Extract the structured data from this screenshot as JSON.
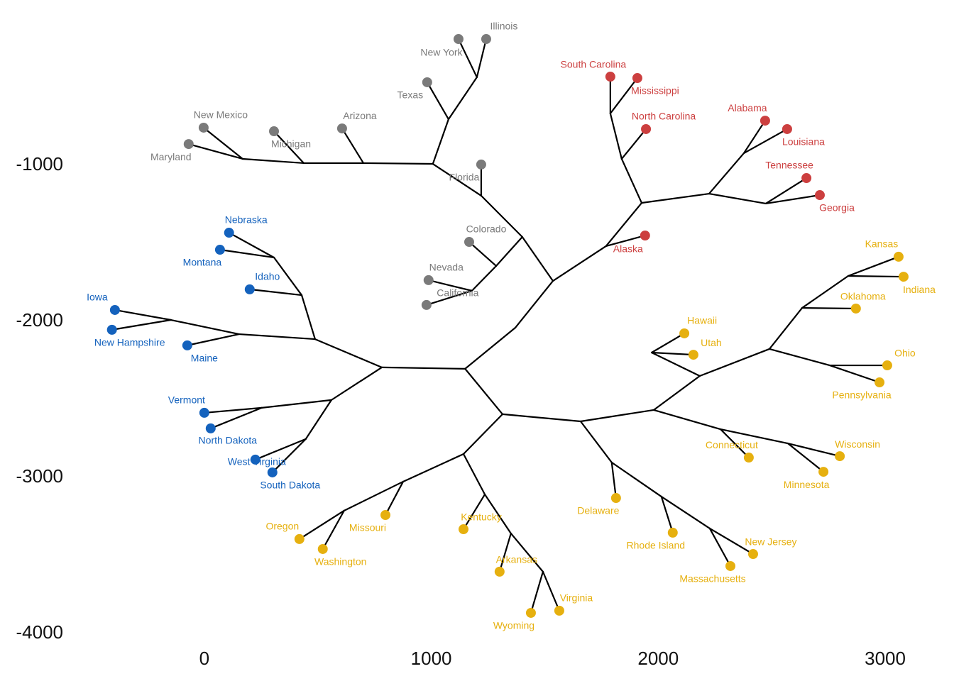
{
  "chart_data": {
    "type": "tree",
    "xlim": [
      -600,
      3250
    ],
    "ylim": [
      -4100,
      0
    ],
    "xticks": [
      0,
      1000,
      2000,
      3000
    ],
    "yticks": [
      -1000,
      -2000,
      -3000,
      -4000
    ],
    "edge_color": "#000000",
    "series": [
      {
        "color": "#7a7a7a",
        "labels": [
          "Illinois",
          "New York",
          "Texas",
          "New Mexico",
          "Maryland",
          "Michigan",
          "Arizona",
          "Florida",
          "Colorado",
          "Nevada",
          "California"
        ],
        "x": [
          1242,
          1120,
          982,
          -3,
          -69,
          307,
          607,
          1220,
          1167,
          988,
          979
        ],
        "y": [
          -191,
          -191,
          -468,
          -759,
          -864,
          -782,
          -764,
          -995,
          -1491,
          -1736,
          -1895
        ]
      },
      {
        "color": "#cc3f3f",
        "labels": [
          "South Carolina",
          "Mississippi",
          "North Carolina",
          "Alabama",
          "Louisiana",
          "Tennessee",
          "Georgia",
          "Alaska"
        ],
        "x": [
          1789,
          1908,
          1946,
          2471,
          2568,
          2653,
          2712,
          1942
        ],
        "y": [
          -432,
          -441,
          -768,
          -714,
          -768,
          -1082,
          -1191,
          -1450
        ]
      },
      {
        "color": "#1462bd",
        "labels": [
          "Nebraska",
          "Montana",
          "Idaho",
          "Iowa",
          "New Hampshire",
          "Maine",
          "Vermont",
          "North Dakota",
          "West Virginia",
          "South Dakota"
        ],
        "x": [
          109,
          69,
          200,
          -394,
          -407,
          -75,
          0,
          28,
          225,
          300
        ],
        "y": [
          -1432,
          -1541,
          -1795,
          -1927,
          -2054,
          -2154,
          -2586,
          -2686,
          -2886,
          -2968
        ]
      },
      {
        "color": "#e6b00f",
        "labels": [
          "Kansas",
          "Indiana",
          "Oklahoma",
          "Hawaii",
          "Utah",
          "Ohio",
          "Pennsylvania",
          "Connecticut",
          "Wisconsin",
          "Minnesota",
          "Delaware",
          "Missouri",
          "Kentucky",
          "Oregon",
          "Washington",
          "Rhode Island",
          "New Jersey",
          "Massachusetts",
          "Arkansas",
          "Virginia",
          "Wyoming"
        ],
        "x": [
          3059,
          3081,
          2871,
          2115,
          2155,
          3009,
          2975,
          2399,
          2800,
          2728,
          1814,
          798,
          1142,
          419,
          522,
          2064,
          2418,
          2318,
          1301,
          1564,
          1439
        ],
        "y": [
          -1586,
          -1714,
          -1918,
          -2077,
          -2214,
          -2282,
          -2391,
          -2873,
          -2864,
          -2964,
          -3132,
          -3241,
          -3332,
          -3395,
          -3459,
          -3354,
          -3491,
          -3568,
          -3604,
          -3854,
          -3868
        ]
      }
    ],
    "edges": [
      {
        "x": [
          782,
          1149
        ],
        "y": [
          -2295,
          -2304
        ]
      },
      {
        "x": [
          782,
          488
        ],
        "y": [
          -2295,
          -2114
        ]
      },
      {
        "x": [
          782,
          560
        ],
        "y": [
          -2295,
          -2504
        ]
      },
      {
        "x": [
          1149,
          1370
        ],
        "y": [
          -2304,
          -2041
        ]
      },
      {
        "x": [
          1370,
          1536
        ],
        "y": [
          -2041,
          -1741
        ]
      },
      {
        "x": [
          1149,
          1314
        ],
        "y": [
          -2304,
          -2595
        ]
      },
      {
        "x": [
          1314,
          1142
        ],
        "y": [
          -2595,
          -2850
        ]
      },
      {
        "x": [
          1314,
          1658
        ],
        "y": [
          -2595,
          -2641
        ]
      },
      {
        "x": [
          1536,
          1401
        ],
        "y": [
          -1741,
          -1459
        ]
      },
      {
        "x": [
          1536,
          1770
        ],
        "y": [
          -1741,
          -1518
        ]
      },
      {
        "x": [
          1401,
          1220
        ],
        "y": [
          -1459,
          -1195
        ]
      },
      {
        "x": [
          1220,
          1220
        ],
        "y": [
          -1195,
          -995
        ]
      },
      {
        "x": [
          1220,
          1007
        ],
        "y": [
          -1195,
          -991
        ]
      },
      {
        "x": [
          1401,
          1286
        ],
        "y": [
          -1459,
          -1645
        ]
      },
      {
        "x": [
          1286,
          1167
        ],
        "y": [
          -1645,
          -1491
        ]
      },
      {
        "x": [
          1286,
          1179
        ],
        "y": [
          -1645,
          -1804
        ]
      },
      {
        "x": [
          1179,
          988
        ],
        "y": [
          -1804,
          -1736
        ]
      },
      {
        "x": [
          1179,
          979
        ],
        "y": [
          -1804,
          -1895
        ]
      },
      {
        "x": [
          1007,
          1076
        ],
        "y": [
          -991,
          -705
        ]
      },
      {
        "x": [
          1076,
          1201
        ],
        "y": [
          -705,
          -436
        ]
      },
      {
        "x": [
          1201,
          1120
        ],
        "y": [
          -436,
          -191
        ]
      },
      {
        "x": [
          1201,
          1242
        ],
        "y": [
          -436,
          -191
        ]
      },
      {
        "x": [
          1076,
          982
        ],
        "y": [
          -705,
          -468
        ]
      },
      {
        "x": [
          1007,
          701
        ],
        "y": [
          -991,
          -986
        ]
      },
      {
        "x": [
          701,
          607
        ],
        "y": [
          -986,
          -764
        ]
      },
      {
        "x": [
          701,
          438
        ],
        "y": [
          -986,
          -986
        ]
      },
      {
        "x": [
          438,
          307
        ],
        "y": [
          -986,
          -782
        ]
      },
      {
        "x": [
          438,
          169
        ],
        "y": [
          -986,
          -959
        ]
      },
      {
        "x": [
          169,
          -3
        ],
        "y": [
          -959,
          -759
        ]
      },
      {
        "x": [
          169,
          -69
        ],
        "y": [
          -959,
          -864
        ]
      },
      {
        "x": [
          1770,
          1942
        ],
        "y": [
          -1518,
          -1450
        ]
      },
      {
        "x": [
          1770,
          1927
        ],
        "y": [
          -1518,
          -1241
        ]
      },
      {
        "x": [
          1927,
          1839
        ],
        "y": [
          -1241,
          -959
        ]
      },
      {
        "x": [
          1839,
          1789
        ],
        "y": [
          -959,
          -668
        ]
      },
      {
        "x": [
          1789,
          1789
        ],
        "y": [
          -668,
          -432
        ]
      },
      {
        "x": [
          1789,
          1908
        ],
        "y": [
          -668,
          -441
        ]
      },
      {
        "x": [
          1839,
          1946
        ],
        "y": [
          -959,
          -768
        ]
      },
      {
        "x": [
          1927,
          2224
        ],
        "y": [
          -1241,
          -1182
        ]
      },
      {
        "x": [
          2224,
          2377
        ],
        "y": [
          -1182,
          -923
        ]
      },
      {
        "x": [
          2377,
          2471
        ],
        "y": [
          -923,
          -714
        ]
      },
      {
        "x": [
          2377,
          2568
        ],
        "y": [
          -923,
          -768
        ]
      },
      {
        "x": [
          2224,
          2474
        ],
        "y": [
          -1182,
          -1245
        ]
      },
      {
        "x": [
          2474,
          2653
        ],
        "y": [
          -1245,
          -1082
        ]
      },
      {
        "x": [
          2474,
          2712
        ],
        "y": [
          -1245,
          -1191
        ]
      },
      {
        "x": [
          488,
          429
        ],
        "y": [
          -2114,
          -1832
        ]
      },
      {
        "x": [
          429,
          307
        ],
        "y": [
          -1832,
          -1591
        ]
      },
      {
        "x": [
          307,
          109
        ],
        "y": [
          -1591,
          -1432
        ]
      },
      {
        "x": [
          307,
          69
        ],
        "y": [
          -1591,
          -1541
        ]
      },
      {
        "x": [
          429,
          200
        ],
        "y": [
          -1832,
          -1795
        ]
      },
      {
        "x": [
          488,
          153
        ],
        "y": [
          -2114,
          -2082
        ]
      },
      {
        "x": [
          153,
          -75
        ],
        "y": [
          -2082,
          -2154
        ]
      },
      {
        "x": [
          153,
          -147
        ],
        "y": [
          -2082,
          -1991
        ]
      },
      {
        "x": [
          -147,
          -394
        ],
        "y": [
          -1991,
          -1927
        ]
      },
      {
        "x": [
          -147,
          -407
        ],
        "y": [
          -1991,
          -2054
        ]
      },
      {
        "x": [
          560,
          253
        ],
        "y": [
          -2504,
          -2554
        ]
      },
      {
        "x": [
          253,
          0
        ],
        "y": [
          -2554,
          -2586
        ]
      },
      {
        "x": [
          253,
          28
        ],
        "y": [
          -2554,
          -2686
        ]
      },
      {
        "x": [
          560,
          447
        ],
        "y": [
          -2504,
          -2754
        ]
      },
      {
        "x": [
          447,
          225
        ],
        "y": [
          -2754,
          -2886
        ]
      },
      {
        "x": [
          447,
          300
        ],
        "y": [
          -2754,
          -2968
        ]
      },
      {
        "x": [
          1658,
          1980
        ],
        "y": [
          -2641,
          -2568
        ]
      },
      {
        "x": [
          1980,
          2183
        ],
        "y": [
          -2568,
          -2350
        ]
      },
      {
        "x": [
          2183,
          1971
        ],
        "y": [
          -2350,
          -2200
        ]
      },
      {
        "x": [
          1971,
          2115
        ],
        "y": [
          -2200,
          -2077
        ]
      },
      {
        "x": [
          1971,
          2155
        ],
        "y": [
          -2200,
          -2214
        ]
      },
      {
        "x": [
          2183,
          2490
        ],
        "y": [
          -2350,
          -2177
        ]
      },
      {
        "x": [
          2490,
          2634
        ],
        "y": [
          -2177,
          -1914
        ]
      },
      {
        "x": [
          2634,
          2837
        ],
        "y": [
          -1914,
          -1709
        ]
      },
      {
        "x": [
          2837,
          3059
        ],
        "y": [
          -1709,
          -1586
        ]
      },
      {
        "x": [
          2837,
          3081
        ],
        "y": [
          -1709,
          -1714
        ]
      },
      {
        "x": [
          2634,
          2871
        ],
        "y": [
          -1914,
          -1918
        ]
      },
      {
        "x": [
          2490,
          2756
        ],
        "y": [
          -2177,
          -2282
        ]
      },
      {
        "x": [
          2756,
          3009
        ],
        "y": [
          -2282,
          -2282
        ]
      },
      {
        "x": [
          2756,
          2975
        ],
        "y": [
          -2282,
          -2391
        ]
      },
      {
        "x": [
          1980,
          2274
        ],
        "y": [
          -2568,
          -2691
        ]
      },
      {
        "x": [
          2274,
          2399
        ],
        "y": [
          -2691,
          -2873
        ]
      },
      {
        "x": [
          2274,
          2571
        ],
        "y": [
          -2691,
          -2782
        ]
      },
      {
        "x": [
          2571,
          2800
        ],
        "y": [
          -2782,
          -2864
        ]
      },
      {
        "x": [
          2571,
          2728
        ],
        "y": [
          -2782,
          -2964
        ]
      },
      {
        "x": [
          1658,
          1795
        ],
        "y": [
          -2641,
          -2904
        ]
      },
      {
        "x": [
          1795,
          1814
        ],
        "y": [
          -2904,
          -3132
        ]
      },
      {
        "x": [
          1795,
          2014
        ],
        "y": [
          -2904,
          -3123
        ]
      },
      {
        "x": [
          2014,
          2064
        ],
        "y": [
          -3123,
          -3354
        ]
      },
      {
        "x": [
          2014,
          2227
        ],
        "y": [
          -3123,
          -3327
        ]
      },
      {
        "x": [
          2227,
          2418
        ],
        "y": [
          -3327,
          -3491
        ]
      },
      {
        "x": [
          2227,
          2318
        ],
        "y": [
          -3327,
          -3568
        ]
      },
      {
        "x": [
          1142,
          876
        ],
        "y": [
          -2850,
          -3027
        ]
      },
      {
        "x": [
          876,
          798
        ],
        "y": [
          -3027,
          -3241
        ]
      },
      {
        "x": [
          876,
          616
        ],
        "y": [
          -3027,
          -3213
        ]
      },
      {
        "x": [
          616,
          419
        ],
        "y": [
          -3213,
          -3395
        ]
      },
      {
        "x": [
          616,
          522
        ],
        "y": [
          -3213,
          -3459
        ]
      },
      {
        "x": [
          1142,
          1236
        ],
        "y": [
          -2850,
          -3109
        ]
      },
      {
        "x": [
          1236,
          1142
        ],
        "y": [
          -3109,
          -3332
        ]
      },
      {
        "x": [
          1236,
          1351
        ],
        "y": [
          -3109,
          -3359
        ]
      },
      {
        "x": [
          1351,
          1301
        ],
        "y": [
          -3359,
          -3604
        ]
      },
      {
        "x": [
          1351,
          1492
        ],
        "y": [
          -3359,
          -3604
        ]
      },
      {
        "x": [
          1492,
          1564
        ],
        "y": [
          -3604,
          -3854
        ]
      },
      {
        "x": [
          1492,
          1439
        ],
        "y": [
          -3604,
          -3868
        ]
      }
    ]
  }
}
